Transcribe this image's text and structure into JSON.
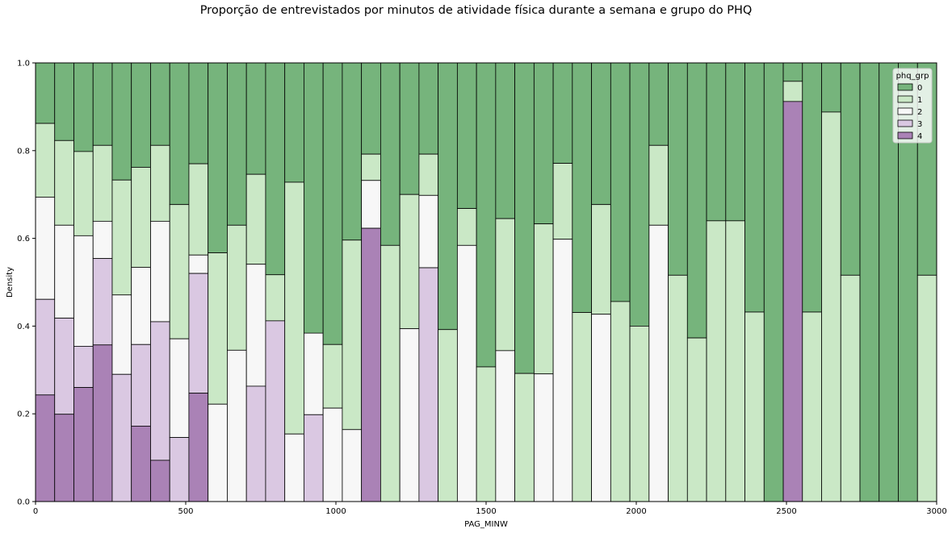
{
  "chart_data": {
    "type": "stacked-histogram",
    "title": "Proporção de entrevistados por minutos de atividade física durante a semana e grupo do PHQ",
    "xlabel": "PAG_MINW",
    "ylabel": "Density",
    "xlim": [
      0,
      3000
    ],
    "ylim": [
      0,
      1.0
    ],
    "xticks": [
      "0",
      "500",
      "1000",
      "1500",
      "2000",
      "2500",
      "3000"
    ],
    "yticks": [
      "0.0",
      "0.2",
      "0.4",
      "0.6",
      "0.8",
      "1.0"
    ],
    "legend": {
      "title": "phq_grp",
      "placement": "top-right",
      "labels": [
        "0",
        "1",
        "2",
        "3",
        "4"
      ]
    },
    "colors": {
      "0": "#76b47c",
      "1": "#cae8c6",
      "2": "#f7f7f7",
      "3": "#dac8e2",
      "4": "#aa82b6"
    },
    "bin_width": 63.8,
    "bins_top_of_group": {
      "description_unused": "",
      "x": [
        0,
        63.8,
        127.7,
        191.5,
        255.3,
        319.1,
        383,
        446.8,
        510.6,
        574.5,
        638.3,
        702.1,
        766,
        829.8,
        893.6,
        957.4,
        1021.3,
        1085.1,
        1148.9,
        1212.8,
        1276.6,
        1340.4,
        1404.3,
        1468.1,
        1531.9,
        1595.7,
        1659.6,
        1723.4,
        1787.2,
        1851.1,
        1914.9,
        1978.7,
        2042.6,
        2106.4,
        2170.2,
        2234,
        2297.9,
        2361.7,
        2425.5,
        2489.4,
        2553.2,
        2617,
        2680.9,
        2744.7,
        2808.5,
        2872.3,
        2936.2
      ],
      "g4": [
        0.243,
        0.199,
        0.26,
        0.357,
        0,
        0.172,
        0.094,
        0,
        0.247,
        0,
        0,
        0,
        0,
        0,
        0,
        0,
        0,
        0.623,
        0,
        0,
        0,
        0,
        0,
        0,
        0,
        0,
        0,
        0,
        0,
        0,
        0,
        0,
        0,
        0,
        0,
        0,
        0,
        0,
        0,
        0.912,
        0,
        0,
        0,
        0,
        0,
        0,
        0
      ],
      "g3": [
        0.461,
        0.418,
        0.354,
        0.554,
        0.29,
        0.358,
        0.41,
        0.146,
        0.52,
        0,
        0,
        0.263,
        0.412,
        0,
        0.198,
        0,
        0,
        0.623,
        0,
        0,
        0.533,
        0,
        0,
        0,
        0,
        0,
        0,
        0,
        0,
        0,
        0,
        0,
        0,
        0,
        0,
        0,
        0,
        0,
        0,
        0.912,
        0,
        0,
        0,
        0,
        0,
        0,
        0
      ],
      "g2": [
        0.694,
        0.63,
        0.606,
        0.639,
        0.471,
        0.534,
        0.639,
        0.371,
        0.562,
        0.222,
        0.345,
        0.541,
        0.412,
        0.154,
        0.384,
        0.213,
        0.164,
        0.732,
        0,
        0.394,
        0.698,
        0,
        0.584,
        0,
        0.344,
        0,
        0.291,
        0.598,
        0,
        0.427,
        0,
        0,
        0.63,
        0,
        0,
        0,
        0,
        0,
        0,
        0.912,
        0,
        0,
        0,
        0,
        0,
        0,
        0
      ],
      "g1": [
        0.862,
        0.823,
        0.798,
        0.812,
        0.733,
        0.762,
        0.812,
        0.677,
        0.77,
        0.567,
        0.63,
        0.746,
        0.517,
        0.728,
        0.338,
        0.358,
        0.596,
        0.792,
        0.584,
        0.7,
        0.792,
        0.392,
        0.668,
        0.307,
        0.645,
        0.292,
        0.633,
        0.771,
        0.431,
        0.677,
        0.456,
        0.4,
        0.812,
        0.516,
        0.373,
        0.64,
        0.64,
        0.432,
        0,
        0.958,
        0.432,
        0.888,
        0.516,
        0,
        0,
        0,
        0.516
      ]
    }
  }
}
